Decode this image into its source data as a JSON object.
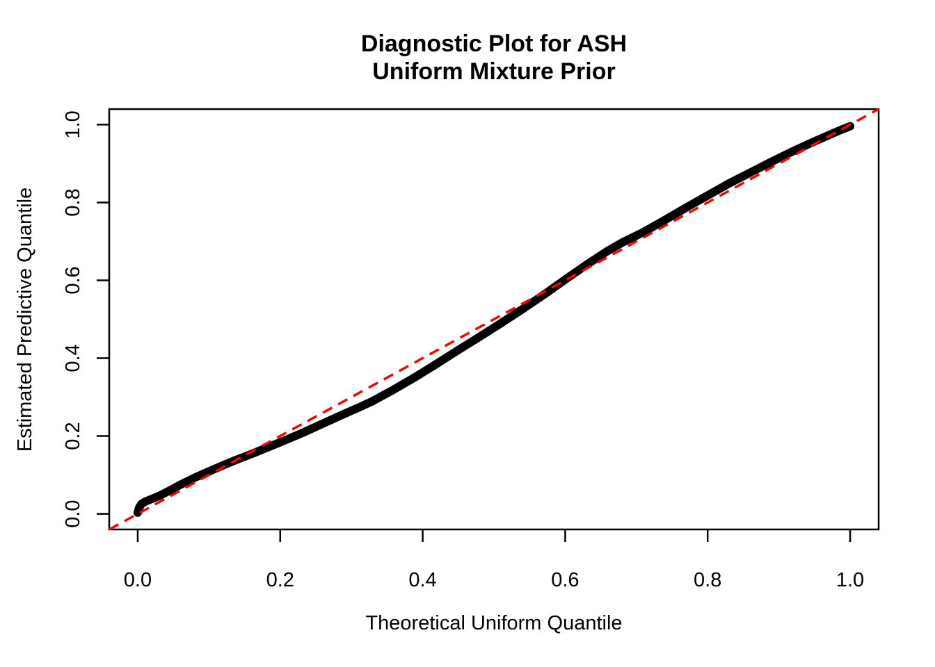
{
  "figure": {
    "background_color": "#ffffff",
    "curve_color": "#000000",
    "reference_line_color": "#ff0000"
  },
  "chart_data": {
    "type": "line",
    "kind": "qq-diagnostic-plot",
    "title_line1": "Diagnostic Plot for ASH",
    "title_line2": "Uniform Mixture Prior",
    "xlabel": "Theoretical Uniform Quantile",
    "ylabel": "Estimated Predictive Quantile",
    "xlim": [
      -0.04,
      1.04
    ],
    "ylim": [
      -0.04,
      1.04
    ],
    "grid": false,
    "legend": "none",
    "x_ticks": {
      "values": [
        0.0,
        0.2,
        0.4,
        0.6,
        0.8,
        1.0
      ],
      "labels": [
        "0.0",
        "0.2",
        "0.4",
        "0.6",
        "0.8",
        "1.0"
      ]
    },
    "y_ticks": {
      "values": [
        0.0,
        0.2,
        0.4,
        0.6,
        0.8,
        1.0
      ],
      "labels": [
        "0.0",
        "0.2",
        "0.4",
        "0.6",
        "0.8",
        "1.0"
      ]
    },
    "series": [
      {
        "name": "estimated-predictive-quantile-curve",
        "type": "line",
        "style": "solid-thick",
        "color": "#000000",
        "points": [
          [
            0.0,
            0.003
          ],
          [
            0.002,
            0.016
          ],
          [
            0.005,
            0.025
          ],
          [
            0.01,
            0.031
          ],
          [
            0.018,
            0.037
          ],
          [
            0.03,
            0.046
          ],
          [
            0.045,
            0.06
          ],
          [
            0.06,
            0.075
          ],
          [
            0.08,
            0.093
          ],
          [
            0.1,
            0.109
          ],
          [
            0.12,
            0.125
          ],
          [
            0.14,
            0.14
          ],
          [
            0.16,
            0.154
          ],
          [
            0.18,
            0.169
          ],
          [
            0.2,
            0.184
          ],
          [
            0.23,
            0.207
          ],
          [
            0.26,
            0.232
          ],
          [
            0.29,
            0.257
          ],
          [
            0.31,
            0.273
          ],
          [
            0.33,
            0.29
          ],
          [
            0.36,
            0.32
          ],
          [
            0.39,
            0.352
          ],
          [
            0.42,
            0.386
          ],
          [
            0.45,
            0.421
          ],
          [
            0.48,
            0.455
          ],
          [
            0.51,
            0.49
          ],
          [
            0.54,
            0.526
          ],
          [
            0.57,
            0.563
          ],
          [
            0.6,
            0.602
          ],
          [
            0.63,
            0.64
          ],
          [
            0.66,
            0.676
          ],
          [
            0.68,
            0.697
          ],
          [
            0.71,
            0.724
          ],
          [
            0.74,
            0.755
          ],
          [
            0.77,
            0.787
          ],
          [
            0.8,
            0.818
          ],
          [
            0.83,
            0.849
          ],
          [
            0.86,
            0.877
          ],
          [
            0.89,
            0.905
          ],
          [
            0.92,
            0.932
          ],
          [
            0.95,
            0.957
          ],
          [
            0.97,
            0.973
          ],
          [
            0.985,
            0.985
          ],
          [
            1.0,
            0.996
          ]
        ]
      },
      {
        "name": "reference-line-y-equals-x",
        "type": "line",
        "style": "dashed",
        "color": "#ff0000",
        "from": [
          -0.04,
          -0.04
        ],
        "to": [
          1.04,
          1.04
        ]
      }
    ]
  }
}
